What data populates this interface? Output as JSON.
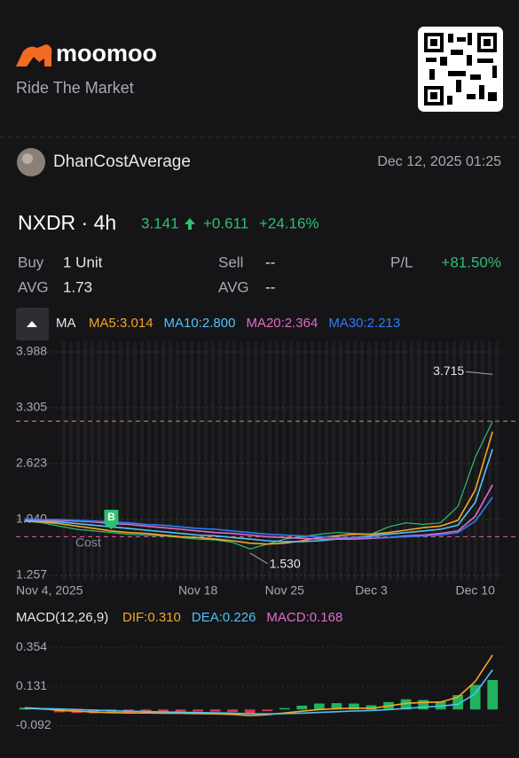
{
  "header": {
    "brand": "moomoo",
    "tagline": "Ride The Market"
  },
  "post": {
    "user": "DhanCostAverage",
    "date": "Dec 12, 2025 01:25"
  },
  "quote": {
    "symbol": "NXDR · 4h",
    "price": "3.141",
    "change": "+0.611",
    "change_pct": "+24.16%"
  },
  "position": {
    "buy_label": "Buy",
    "buy": "1 Unit",
    "sell_label": "Sell",
    "sell": "--",
    "pl_label": "P/L",
    "pl": "+81.50%",
    "avg_label": "AVG",
    "avg": "1.73",
    "avg2_label": "AVG",
    "avg2": "--"
  },
  "chart_data": [
    {
      "type": "line",
      "legend_title": "MA",
      "categories": [
        "Nov 4, 2025",
        null,
        null,
        null,
        null,
        null,
        null,
        null,
        null,
        null,
        "Nov 18",
        null,
        null,
        null,
        null,
        "Nov 25",
        null,
        null,
        null,
        null,
        "Dec 3",
        null,
        null,
        null,
        null,
        null,
        "Dec 10",
        null
      ],
      "color": "#2fbf71",
      "values": [
        1.92,
        1.9,
        1.86,
        1.82,
        1.8,
        1.78,
        1.76,
        1.75,
        1.74,
        1.72,
        1.7,
        1.69,
        1.66,
        1.58,
        1.64,
        1.7,
        1.73,
        1.76,
        1.78,
        1.77,
        1.76,
        1.85,
        1.9,
        1.88,
        1.9,
        2.1,
        2.7,
        3.141
      ],
      "series": [
        {
          "name": "MA5:3.014",
          "color": "#f5a623",
          "values": [
            1.92,
            1.91,
            1.89,
            1.86,
            1.83,
            1.8,
            1.78,
            1.77,
            1.75,
            1.73,
            1.72,
            1.7,
            1.68,
            1.65,
            1.64,
            1.65,
            1.68,
            1.72,
            1.74,
            1.76,
            1.76,
            1.78,
            1.81,
            1.84,
            1.86,
            1.93,
            2.3,
            3.014
          ]
        },
        {
          "name": "MA10:2.800",
          "color": "#4fc3f7",
          "values": [
            1.93,
            1.92,
            1.91,
            1.89,
            1.87,
            1.85,
            1.83,
            1.81,
            1.79,
            1.77,
            1.75,
            1.74,
            1.72,
            1.7,
            1.68,
            1.67,
            1.67,
            1.68,
            1.7,
            1.72,
            1.74,
            1.76,
            1.78,
            1.8,
            1.82,
            1.87,
            2.15,
            2.8
          ]
        },
        {
          "name": "MA20:2.364",
          "color": "#e06cc8",
          "values": [
            1.94,
            1.93,
            1.93,
            1.92,
            1.91,
            1.89,
            1.88,
            1.86,
            1.84,
            1.82,
            1.8,
            1.78,
            1.77,
            1.75,
            1.73,
            1.72,
            1.71,
            1.7,
            1.7,
            1.7,
            1.71,
            1.72,
            1.74,
            1.75,
            1.77,
            1.8,
            1.98,
            2.364
          ]
        },
        {
          "name": "MA30:2.213",
          "color": "#2f7cf6",
          "values": [
            1.95,
            1.94,
            1.94,
            1.93,
            1.92,
            1.91,
            1.9,
            1.88,
            1.87,
            1.85,
            1.83,
            1.82,
            1.8,
            1.78,
            1.76,
            1.75,
            1.74,
            1.73,
            1.72,
            1.72,
            1.72,
            1.72,
            1.73,
            1.74,
            1.75,
            1.78,
            1.92,
            2.213
          ]
        }
      ],
      "ref_lines": [
        {
          "value": 3.141,
          "color": "#f08c2a"
        },
        {
          "value": 1.73,
          "color": "#e0609a"
        }
      ],
      "annotations": [
        {
          "label": "3.715",
          "value": 3.715
        },
        {
          "label": "1.530",
          "value": 1.53
        }
      ],
      "markers": {
        "buy": "B",
        "cost": "Cost"
      },
      "ylim": [
        1.257,
        3.988
      ],
      "yticks": [
        3.988,
        3.305,
        2.623,
        {
          "value": 1.94,
          "label": "1.940"
        },
        1.257
      ],
      "grid": true
    },
    {
      "type": "macd",
      "title": "MACD(12,26,9)",
      "series": [
        {
          "name": "DIF:0.310",
          "color": "#f5a623",
          "values": [
            0.01,
            0.005,
            -0.005,
            -0.01,
            -0.015,
            -0.018,
            -0.02,
            -0.02,
            -0.021,
            -0.022,
            -0.024,
            -0.025,
            -0.028,
            -0.035,
            -0.03,
            -0.02,
            -0.01,
            0.0,
            0.005,
            0.008,
            0.006,
            0.02,
            0.035,
            0.04,
            0.042,
            0.07,
            0.16,
            0.31
          ]
        },
        {
          "name": "DEA:0.226",
          "color": "#4fc3f7",
          "values": [
            0.005,
            0.005,
            0.003,
            0.0,
            -0.004,
            -0.007,
            -0.01,
            -0.012,
            -0.014,
            -0.016,
            -0.018,
            -0.019,
            -0.021,
            -0.024,
            -0.025,
            -0.024,
            -0.021,
            -0.017,
            -0.013,
            -0.009,
            -0.006,
            -0.001,
            0.006,
            0.013,
            0.019,
            0.029,
            0.09,
            0.226
          ]
        },
        {
          "name": "MACD:0.168",
          "type": "bar",
          "color": "#e06cc8",
          "pos_color": "#22b35e",
          "neg_color": "#e0334a",
          "values": [
            0.01,
            0,
            -0.016,
            -0.02,
            -0.022,
            -0.022,
            -0.02,
            -0.016,
            -0.014,
            -0.012,
            -0.012,
            -0.012,
            -0.014,
            -0.022,
            -0.01,
            0.008,
            0.022,
            0.034,
            0.036,
            0.034,
            0.024,
            0.042,
            0.058,
            0.054,
            0.046,
            0.082,
            0.14,
            0.168
          ]
        }
      ],
      "ylim": [
        -0.14,
        0.4
      ],
      "yticks": [
        0.354,
        0.131,
        -0.092
      ]
    }
  ]
}
